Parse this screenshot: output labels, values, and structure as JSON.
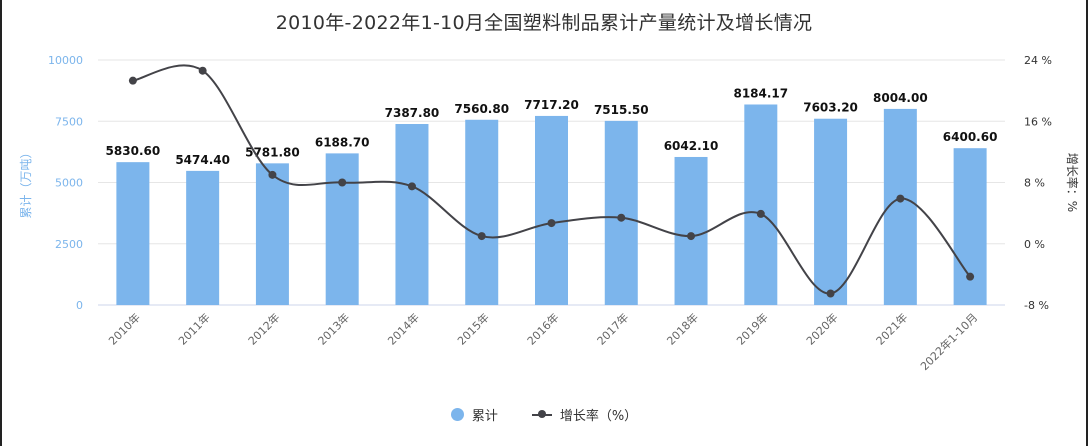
{
  "chart_data": {
    "type": "bar",
    "title": "2010年-2022年1-10月全国塑料制品累计产量统计及增长情况",
    "categories": [
      "2010年",
      "2011年",
      "2012年",
      "2013年",
      "2014年",
      "2015年",
      "2016年",
      "2017年",
      "2018年",
      "2019年",
      "2020年",
      "2021年",
      "2022年1-10月"
    ],
    "series": [
      {
        "name": "累计",
        "type": "bar",
        "axis": "left",
        "color": "#7cb5ec",
        "values": [
          5830.6,
          5474.4,
          5781.8,
          6188.7,
          7387.8,
          7560.8,
          7717.2,
          7515.5,
          6042.1,
          8184.17,
          7603.2,
          8004.0,
          6400.6
        ]
      },
      {
        "name": "增长率（%）",
        "type": "line",
        "axis": "right",
        "color": "#434348",
        "values": [
          21.3,
          22.6,
          9.0,
          8.0,
          7.5,
          1.0,
          2.7,
          3.4,
          1.0,
          3.9,
          -6.5,
          5.9,
          -4.3
        ]
      }
    ],
    "ylabel": "累计（万吨）",
    "y2label": "增长率：%",
    "ylim": [
      0,
      10000
    ],
    "y2lim": [
      -8,
      24
    ],
    "yticks": [
      "0",
      "2500",
      "5000",
      "7500",
      "10000"
    ],
    "y2ticks": [
      "-8 %",
      "0 %",
      "8 %",
      "16 %",
      "24 %"
    ],
    "data_labels": [
      "5830.60",
      "5474.40",
      "5781.80",
      "6188.70",
      "7387.80",
      "7560.80",
      "7717.20",
      "7515.50",
      "6042.10",
      "8184.17",
      "7603.20",
      "8004.00",
      "6400.60"
    ],
    "grid": true,
    "legend": "bottom-center"
  },
  "legend": {
    "bar_label": "累计",
    "line_label": "增长率（%）"
  },
  "colors": {
    "bar": "#7cb5ec",
    "line": "#434348",
    "left_axis_text": "#7cb5ec",
    "grid": "#e6e6e6",
    "text": "#333333"
  }
}
